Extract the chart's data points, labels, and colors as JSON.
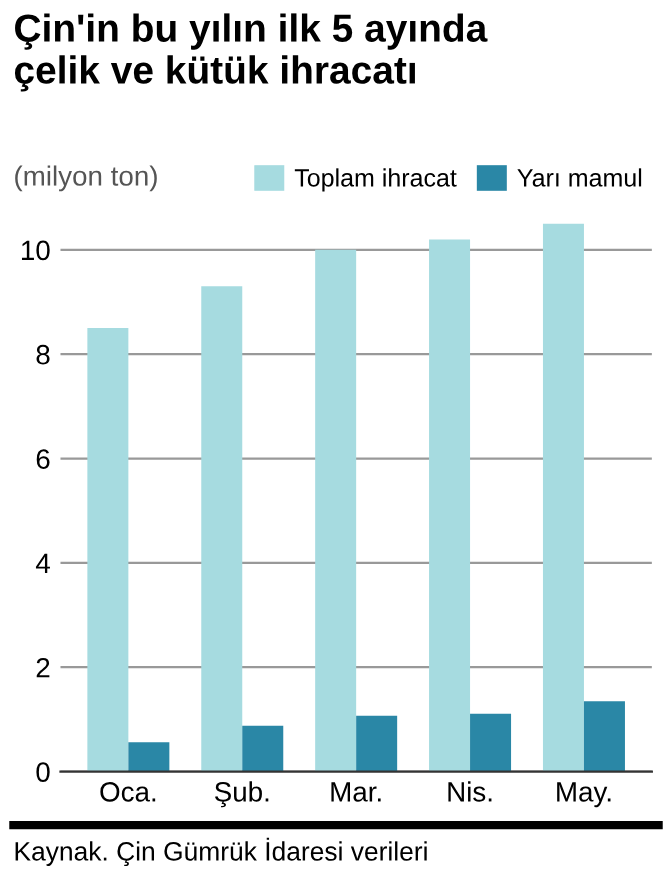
{
  "chart_data": {
    "type": "bar",
    "title": "Çin'in bu yılın ilk 5 ayında\nçelik ve kütük ihracatı",
    "ylabel": "(milyon ton)",
    "categories": [
      "Oca.",
      "Şub.",
      "Mar.",
      "Nis.",
      "May."
    ],
    "series": [
      {
        "name": "Toplam ihracat",
        "color": "#a6dbe0",
        "values": [
          8.5,
          9.3,
          10.0,
          10.2,
          10.5
        ]
      },
      {
        "name": "Yarı mamul",
        "color": "#2a87a6",
        "values": [
          0.56,
          0.88,
          1.07,
          1.11,
          1.35
        ]
      }
    ],
    "ylim": [
      0,
      10.6
    ],
    "yticks": [
      0,
      2,
      4,
      6,
      8,
      10
    ],
    "grid": "y",
    "legend": "top right",
    "annotations": [
      "Kaynak. Çin Gümrük İdaresi verileri"
    ]
  }
}
